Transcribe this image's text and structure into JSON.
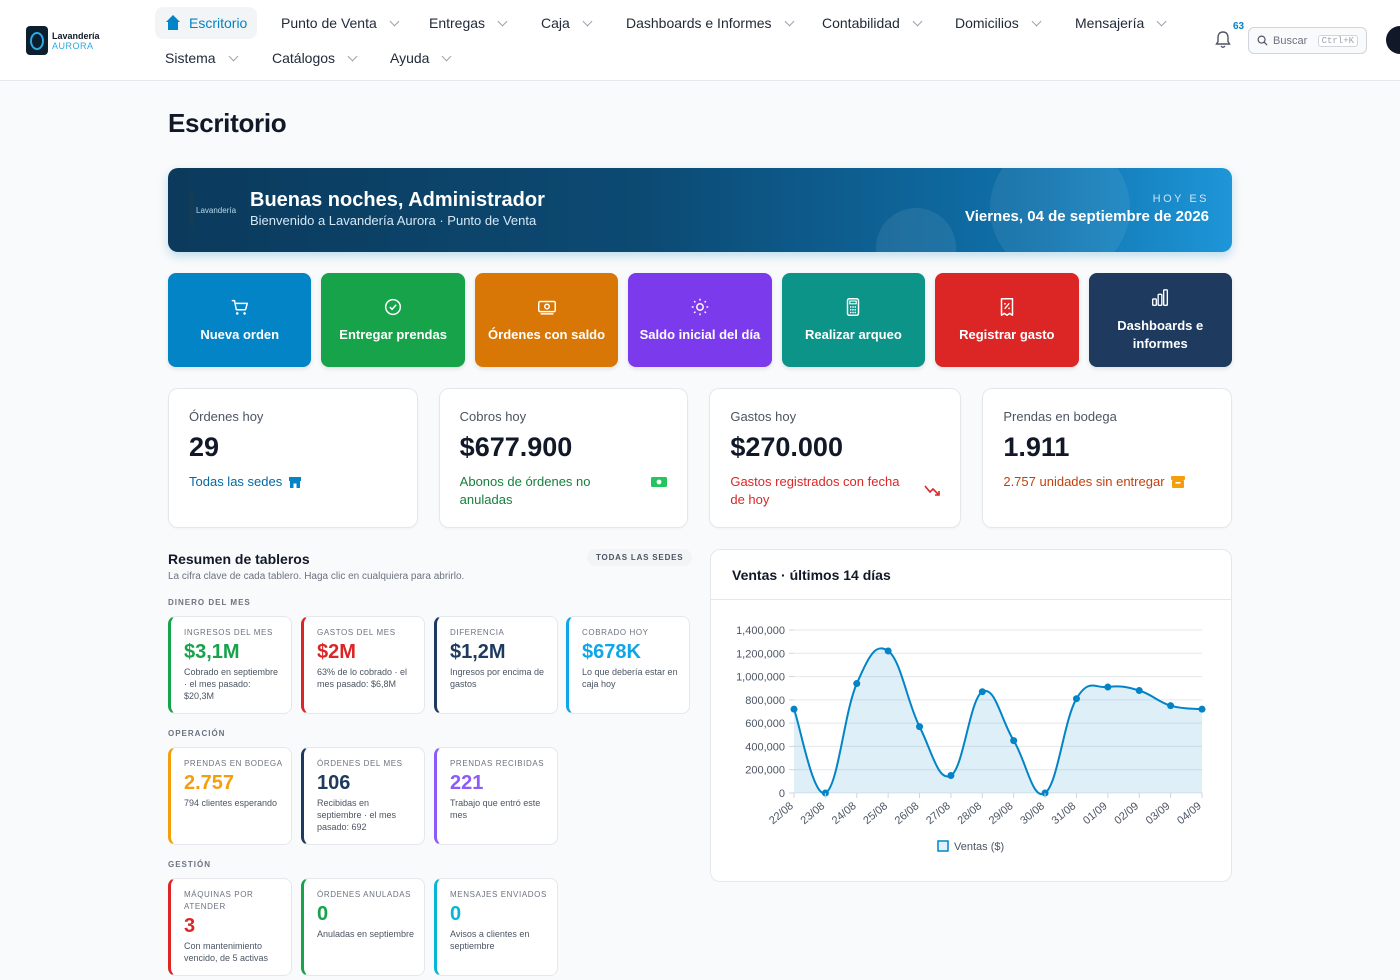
{
  "brand": {
    "name": "Lavandería",
    "sub": "AURORA"
  },
  "nav": {
    "items": [
      {
        "label": "Escritorio",
        "active": true
      },
      {
        "label": "Punto de Venta"
      },
      {
        "label": "Entregas"
      },
      {
        "label": "Caja"
      },
      {
        "label": "Dashboards e Informes"
      },
      {
        "label": "Contabilidad"
      },
      {
        "label": "Domicilios"
      },
      {
        "label": "Mensajería"
      },
      {
        "label": "Sistema"
      },
      {
        "label": "Catálogos"
      },
      {
        "label": "Ayuda"
      }
    ],
    "notifications": "63",
    "search_label": "Buscar",
    "search_shortcut": "Ctrl+K"
  },
  "page": {
    "title": "Escritorio"
  },
  "hero": {
    "greeting": "Buenas noches, Administrador",
    "subtitle": "Bienvenido a Lavandería Aurora · Punto de Venta",
    "today_label": "HOY ES",
    "date": "Viernes, 04 de septiembre de 2026"
  },
  "actions": [
    {
      "label": "Nueva orden",
      "color": "#0284c7",
      "icon": "cart-icon"
    },
    {
      "label": "Entregar prendas",
      "color": "#16a34a",
      "icon": "check-circle-icon"
    },
    {
      "label": "Órdenes con saldo",
      "color": "#d97706",
      "icon": "cash-icon"
    },
    {
      "label": "Saldo inicial del día",
      "color": "#7c3aed",
      "icon": "sun-icon"
    },
    {
      "label": "Realizar arqueo",
      "color": "#0d9488",
      "icon": "calculator-icon"
    },
    {
      "label": "Registrar gasto",
      "color": "#dc2626",
      "icon": "receipt-icon"
    },
    {
      "label": "Dashboards e informes",
      "color": "#1e3a5f",
      "icon": "bar-chart-icon"
    }
  ],
  "stats": [
    {
      "label": "Órdenes hoy",
      "value": "29",
      "note": "Todas las sedes",
      "color": "#0369a1",
      "icon": "store-icon"
    },
    {
      "label": "Cobros hoy",
      "value": "$677.900",
      "note": "Abonos de órdenes no anuladas",
      "color": "#15803d",
      "icon": "money-icon"
    },
    {
      "label": "Gastos hoy",
      "value": "$270.000",
      "note": "Gastos registrados con fecha de hoy",
      "color": "#dc2626",
      "icon": "trend-down-icon"
    },
    {
      "label": "Prendas en bodega",
      "value": "1.911",
      "note": "2.757 unidades sin entregar",
      "color": "#c2410c",
      "icon": "archive-icon"
    }
  ],
  "summary": {
    "title": "Resumen de tableros",
    "subtitle": "La cifra clave de cada tablero. Haga clic en cualquiera para abrirlo.",
    "scope": "TODAS LAS SEDES",
    "sections": [
      {
        "heading": "DINERO DEL MES",
        "tiles": [
          {
            "label": "INGRESOS DEL MES",
            "value": "$3,1M",
            "desc": "Cobrado en septiembre · el mes pasado: $20,3M",
            "color": "#16a34a"
          },
          {
            "label": "GASTOS DEL MES",
            "value": "$2M",
            "desc": "63% de lo cobrado · el mes pasado: $6,8M",
            "color": "#dc2626"
          },
          {
            "label": "DIFERENCIA",
            "value": "$1,2M",
            "desc": "Ingresos por encima de gastos",
            "color": "#1e3a5f"
          },
          {
            "label": "COBRADO HOY",
            "value": "$678K",
            "desc": "Lo que debería estar en caja hoy",
            "color": "#0ea5e9"
          }
        ]
      },
      {
        "heading": "OPERACIÓN",
        "tiles": [
          {
            "label": "PRENDAS EN BODEGA",
            "value": "2.757",
            "desc": "794 clientes esperando",
            "color": "#f59e0b"
          },
          {
            "label": "ÓRDENES DEL MES",
            "value": "106",
            "desc": "Recibidas en septiembre · el mes pasado: 692",
            "color": "#1e3a5f"
          },
          {
            "label": "PRENDAS RECIBIDAS",
            "value": "221",
            "desc": "Trabajo que entró este mes",
            "color": "#8b5cf6"
          }
        ]
      },
      {
        "heading": "GESTIÓN",
        "tiles": [
          {
            "label": "MÁQUINAS POR ATENDER",
            "value": "3",
            "desc": "Con mantenimiento vencido, de 5 activas",
            "color": "#dc2626"
          },
          {
            "label": "ÓRDENES ANULADAS",
            "value": "0",
            "desc": "Anuladas en septiembre",
            "color": "#16a34a"
          },
          {
            "label": "MENSAJES ENVIADOS",
            "value": "0",
            "desc": "Avisos a clientes en septiembre",
            "color": "#06b6d4"
          }
        ]
      }
    ]
  },
  "chart_data": {
    "type": "area",
    "title": "Ventas · últimos 14 días",
    "categories": [
      "22/08",
      "23/08",
      "24/08",
      "25/08",
      "26/08",
      "27/08",
      "28/08",
      "29/08",
      "30/08",
      "31/08",
      "01/09",
      "02/09",
      "03/09",
      "04/09"
    ],
    "series": [
      {
        "name": "Ventas ($)",
        "values": [
          720000,
          0,
          940000,
          1220000,
          570000,
          150000,
          870000,
          450000,
          0,
          810000,
          910000,
          880000,
          750000,
          720000
        ]
      }
    ],
    "yticks": [
      "0",
      "200,000",
      "400,000",
      "600,000",
      "800,000",
      "1,000,000",
      "1,200,000",
      "1,400,000"
    ],
    "ylim": [
      0,
      1400000
    ],
    "grid": true,
    "legend": "bottom",
    "color": "#0284c7"
  }
}
